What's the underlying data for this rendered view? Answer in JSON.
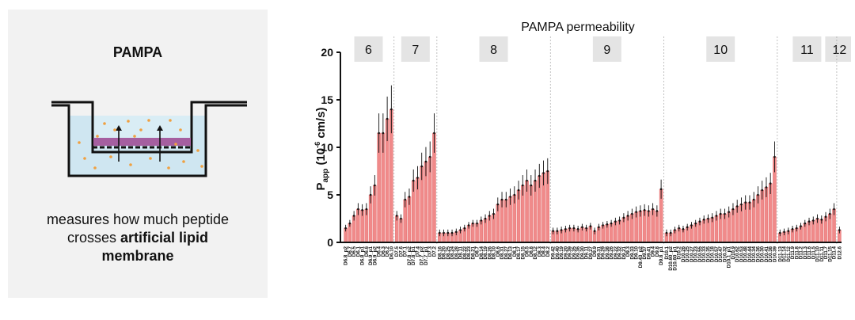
{
  "diagram": {
    "title": "PAMPA",
    "caption_line1": "measures how much peptide",
    "caption_line2_plain": "crosses ",
    "caption_line2_bold": "artificial lipid",
    "caption_line3_bold": "membrane"
  },
  "chart_data": {
    "type": "bar",
    "title": "PAMPA permeability",
    "ylabel_main": "P",
    "ylabel_sub": "app",
    "ylabel_rest": " (10",
    "ylabel_exp": "-6",
    "ylabel_end": " cm/s)",
    "ylim": [
      0,
      20
    ],
    "yticks": [
      "0",
      "5",
      "10",
      "15",
      "20"
    ],
    "bar_color": "#f08a8a",
    "groups": [
      {
        "label": "6",
        "categories": [
          "D6.8_p2",
          "D6.7",
          "D6.5",
          "D6.1",
          "D6.8_p1",
          "D6.6",
          "D6.9_p1",
          "D6.9_p2",
          "D6.4",
          "D6.3",
          "D6.2",
          "D6.10"
        ],
        "values": [
          1.5,
          2.0,
          2.8,
          3.5,
          3.4,
          3.5,
          5.0,
          6.0,
          11.5,
          11.5,
          13.0,
          14.0
        ]
      },
      {
        "label": "7",
        "categories": [
          "D7.5",
          "D7.6",
          "D7.1",
          "D7.8_p2",
          "D7.8_p1",
          "D7.4",
          "D7.7_p2",
          "D7.7_p1",
          "D7.3",
          "D7.2"
        ],
        "values": [
          2.8,
          2.5,
          4.5,
          4.8,
          6.5,
          6.8,
          8.0,
          8.5,
          9.0,
          11.5
        ]
      },
      {
        "label": "8",
        "categories": [
          "D8.16",
          "D8.20",
          "D8.25",
          "D8.24",
          "D8.28",
          "D8.11",
          "D8.22",
          "D8.23",
          "D8.21",
          "D8.7",
          "D8.14",
          "D8.19",
          "D8.26",
          "D8.10",
          "D8.6",
          "D8.31",
          "D8.27",
          "D8.13",
          "D8.1",
          "D8.17",
          "D8.15",
          "D8.5",
          "D8.8",
          "D8.12",
          "D8.3",
          "D8.4",
          "D8.2"
        ],
        "values": [
          1.0,
          1.0,
          1.0,
          1.0,
          1.1,
          1.3,
          1.5,
          1.8,
          2.0,
          2.0,
          2.3,
          2.5,
          2.8,
          3.0,
          4.0,
          4.5,
          4.5,
          4.8,
          5.0,
          5.5,
          6.0,
          6.5,
          6.0,
          6.5,
          7.0,
          7.3,
          7.5
        ]
      },
      {
        "label": "9",
        "categories": [
          "D9.42",
          "D9.40",
          "D9.19",
          "D9.20",
          "D9.39",
          "D9.35",
          "D9.36",
          "D9.30",
          "D9.11",
          "D9.27",
          "D9.9",
          "D9.31",
          "D9.29",
          "D9.38",
          "D9.26",
          "D9.22",
          "D9.32",
          "D9.21",
          "D9.3",
          "D9.33",
          "D9.10",
          "D9.43_p2",
          "D9.37",
          "D9.41",
          "D9.4",
          "D9.8",
          "D9.8_p1"
        ],
        "values": [
          1.2,
          1.2,
          1.3,
          1.4,
          1.5,
          1.5,
          1.4,
          1.6,
          1.5,
          1.7,
          1.2,
          1.6,
          1.8,
          1.9,
          2.0,
          2.2,
          2.3,
          2.6,
          2.8,
          3.0,
          3.2,
          3.3,
          3.4,
          3.3,
          3.5,
          3.3,
          5.6
        ]
      },
      {
        "label": "10",
        "categories": [
          "D10.1",
          "D10.60_p2",
          "D10.60_p1",
          "D10.2",
          "D10.26",
          "D10.25",
          "D10.27",
          "D10.23",
          "D10.55",
          "D10.33",
          "D10.35",
          "D10.18",
          "D10.57",
          "D10.47",
          "D10.32",
          "D10.1_p1",
          "D10.9",
          "D10.62",
          "D10.53",
          "D10.48",
          "D10.44",
          "D10.34",
          "D10.36",
          "D10.30",
          "D10.41",
          "D10.38",
          "D10.39"
        ],
        "values": [
          1.0,
          1.0,
          1.3,
          1.5,
          1.4,
          1.6,
          1.8,
          2.0,
          2.2,
          2.4,
          2.5,
          2.6,
          2.8,
          3.0,
          3.0,
          3.2,
          3.5,
          3.8,
          4.0,
          4.2,
          4.2,
          4.5,
          5.0,
          5.5,
          5.8,
          6.2,
          9.0
        ]
      },
      {
        "label": "11",
        "categories": [
          "D11.13",
          "D11.14",
          "D11.12",
          "D11.9",
          "D11.8",
          "D11.2",
          "D11.3",
          "D11.6",
          "D11.5",
          "D11.10",
          "D11.11",
          "D11.7",
          "D11.15",
          "D11.4"
        ],
        "values": [
          1.0,
          1.1,
          1.2,
          1.4,
          1.5,
          1.7,
          2.0,
          2.2,
          2.3,
          2.5,
          2.4,
          2.7,
          3.0,
          3.5
        ]
      },
      {
        "label": "12",
        "categories": [
          "D12.6"
        ],
        "values": [
          1.3
        ]
      }
    ]
  }
}
